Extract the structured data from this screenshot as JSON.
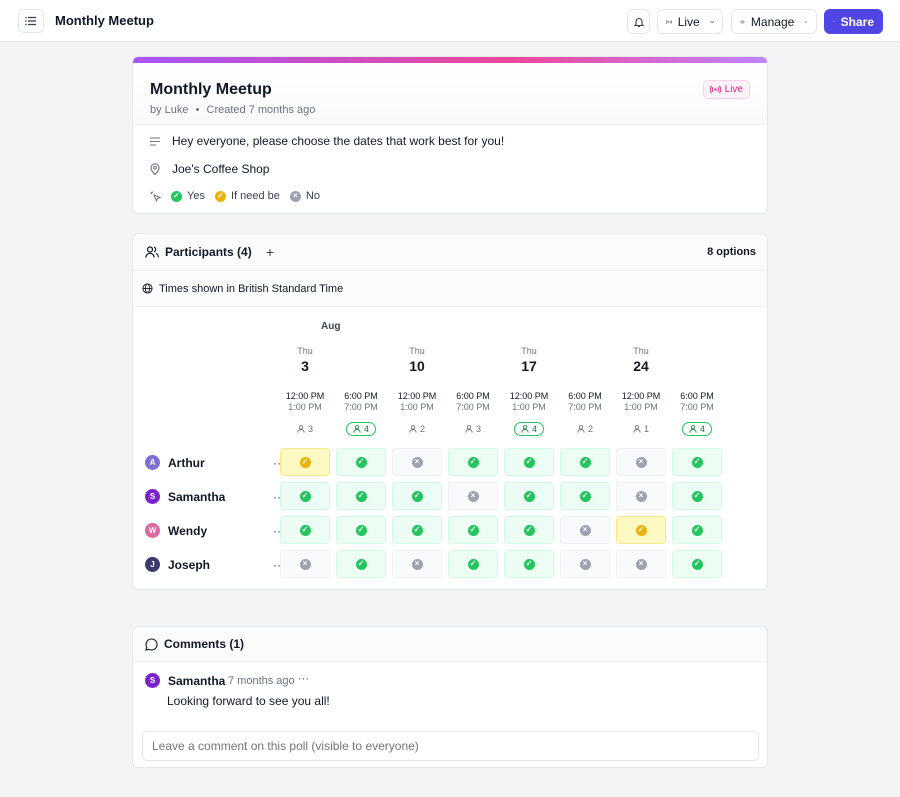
{
  "topbar": {
    "title": "Monthly Meetup",
    "live_label": "Live",
    "manage_label": "Manage",
    "share_label": "Share"
  },
  "poll": {
    "title": "Monthly Meetup",
    "author": "by Luke",
    "created": "Created 7 months ago",
    "status_badge": "Live",
    "description": "Hey everyone, please choose the dates that work best for you!",
    "location": "Joe's Coffee Shop",
    "legend": {
      "yes": "Yes",
      "maybe": "If need be",
      "no": "No"
    }
  },
  "participants_panel": {
    "title": "Participants (4)",
    "options_count": "8 options",
    "timezone": "Times shown in British Standard Time",
    "month": "Aug",
    "dates": [
      {
        "dow": "Thu",
        "day": "3"
      },
      {
        "dow": "Thu",
        "day": "10"
      },
      {
        "dow": "Thu",
        "day": "17"
      },
      {
        "dow": "Thu",
        "day": "24"
      }
    ],
    "options": [
      {
        "start": "12:00 PM",
        "end": "1:00 PM",
        "count": "3",
        "top": false
      },
      {
        "start": "6:00 PM",
        "end": "7:00 PM",
        "count": "4",
        "top": true
      },
      {
        "start": "12:00 PM",
        "end": "1:00 PM",
        "count": "2",
        "top": false
      },
      {
        "start": "6:00 PM",
        "end": "7:00 PM",
        "count": "3",
        "top": false
      },
      {
        "start": "12:00 PM",
        "end": "1:00 PM",
        "count": "4",
        "top": true
      },
      {
        "start": "6:00 PM",
        "end": "7:00 PM",
        "count": "2",
        "top": false
      },
      {
        "start": "12:00 PM",
        "end": "1:00 PM",
        "count": "1",
        "top": false
      },
      {
        "start": "6:00 PM",
        "end": "7:00 PM",
        "count": "4",
        "top": true
      }
    ],
    "participants": [
      {
        "initial": "A",
        "name": "Arthur",
        "color": "#7c6fd6",
        "votes": [
          "maybe",
          "yes",
          "no",
          "yes",
          "yes",
          "yes",
          "no",
          "yes"
        ]
      },
      {
        "initial": "S",
        "name": "Samantha",
        "color": "#7e22ce",
        "votes": [
          "yes",
          "yes",
          "yes",
          "no",
          "yes",
          "yes",
          "no",
          "yes"
        ]
      },
      {
        "initial": "W",
        "name": "Wendy",
        "color": "#db6aa0",
        "votes": [
          "yes",
          "yes",
          "yes",
          "yes",
          "yes",
          "no",
          "maybe",
          "yes"
        ]
      },
      {
        "initial": "J",
        "name": "Joseph",
        "color": "#3b3a6e",
        "votes": [
          "no",
          "yes",
          "no",
          "yes",
          "yes",
          "no",
          "no",
          "yes"
        ]
      }
    ]
  },
  "comments": {
    "title": "Comments (1)",
    "items": [
      {
        "initial": "S",
        "author": "Samantha",
        "time": "7 months ago",
        "text": "Looking forward to see you all!"
      }
    ],
    "input_placeholder": "Leave a comment on this poll (visible to everyone)"
  },
  "colors": {
    "accent": "#4f46e5",
    "live": "#db2777",
    "yes": "#22c55e",
    "maybe": "#eab308",
    "no": "#9ca3af"
  }
}
